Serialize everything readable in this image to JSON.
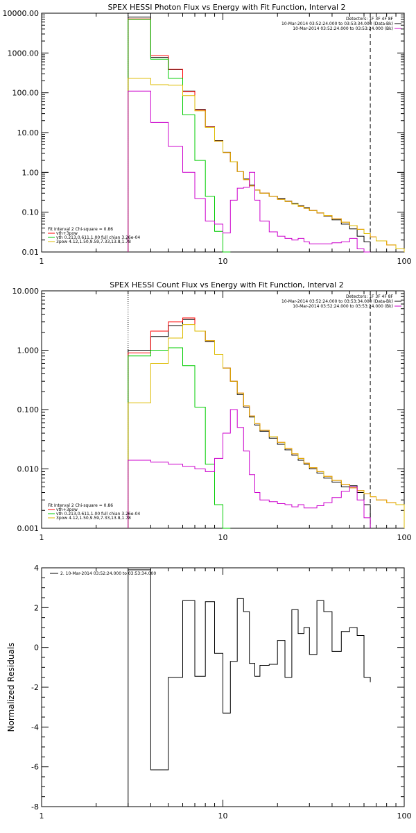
{
  "chart_data": [
    {
      "type": "line",
      "title": "SPEX HESSI Photon Flux vs Energy with Fit Function, Interval 2",
      "xlabel": "",
      "ylabel": "",
      "xscale": "log",
      "yscale": "log",
      "xlim": [
        1,
        100
      ],
      "ylim": [
        0.01,
        10000
      ],
      "xticks": [
        {
          "v": 1,
          "label": "1"
        },
        {
          "v": 10,
          "label": "10"
        },
        {
          "v": 100,
          "label": "100"
        }
      ],
      "yticks": [
        {
          "v": 10000,
          "label": "10000.00"
        },
        {
          "v": 1000,
          "label": "1000.00"
        },
        {
          "v": 100,
          "label": "100.00"
        },
        {
          "v": 10,
          "label": "10.00"
        },
        {
          "v": 1,
          "label": "1.00"
        },
        {
          "v": 0.1,
          "label": "0.10"
        },
        {
          "v": 0.01,
          "label": "0.01"
        }
      ],
      "vlines": [
        {
          "x": 3,
          "style": "dotted"
        },
        {
          "x": 65,
          "style": "dashed"
        }
      ],
      "legend_top": [
        "Detectors: 1F 3F 4F 8F",
        "10-Mar-2014 03:52:24.000 to 03:53:34.000 (Data-Bk)",
        "10-Mar-2014 03:52:24.000 to 03:53:24.000 (Bk)"
      ],
      "legend_top_colors": [
        "",
        "#000000",
        "#cc00cc"
      ],
      "legend_bottom": [
        "Fit Interval 2   Chi-square = 0.86",
        "vth+3pow",
        "vth 0.213,0.611,1.00  full chian 3.26e-04",
        "3pow 4.12,1.50,9.59,7.33,13.8,1.78"
      ],
      "legend_bottom_colors": [
        "",
        "#ff0000",
        "#00cc00",
        "#ddbb00"
      ],
      "edges": [
        3,
        4,
        5,
        6,
        7,
        8,
        9,
        10,
        11,
        12,
        13,
        14,
        15,
        16,
        18,
        20,
        22,
        24,
        26,
        28,
        30,
        33,
        36,
        40,
        45,
        50,
        55,
        60,
        65,
        70,
        80,
        90,
        100
      ],
      "series": [
        {
          "name": "",
          "color": "#000000",
          "values": [
            8000,
            780,
            380,
            110,
            38,
            14,
            6.3,
            3.2,
            1.85,
            1.05,
            0.68,
            0.48,
            0.36,
            0.3,
            0.25,
            0.22,
            0.19,
            0.165,
            0.145,
            0.13,
            0.11,
            0.096,
            0.08,
            0.064,
            0.05,
            0.038,
            0.025,
            0.018,
            null,
            null,
            null,
            null
          ]
        },
        {
          "name": "",
          "color": "#ff0000",
          "values": [
            7200,
            860,
            390,
            108,
            37,
            13.8,
            6.1,
            3.15,
            1.85,
            1.05,
            0.66,
            0.46,
            0.36,
            0.3,
            0.25,
            0.21,
            0.185,
            0.16,
            0.14,
            0.125,
            0.11,
            0.096,
            0.082,
            0.068,
            0.056,
            0.046,
            0.037,
            0.029,
            0.024,
            0.019,
            0.015,
            0.012
          ]
        },
        {
          "name": "",
          "color": "#00cc00",
          "values": [
            7000,
            700,
            230,
            28,
            2.0,
            0.25,
            0.033,
            0.01,
            null,
            null,
            null,
            null,
            null,
            null,
            null,
            null,
            null,
            null,
            null,
            null,
            null,
            null,
            null,
            null,
            null,
            null,
            null,
            null,
            null,
            null,
            null,
            null
          ]
        },
        {
          "name": "",
          "color": "#ddbb00",
          "values": [
            230,
            160,
            155,
            85,
            35,
            13.5,
            6.1,
            3.15,
            1.85,
            1.05,
            0.66,
            0.46,
            0.36,
            0.3,
            0.25,
            0.21,
            0.185,
            0.16,
            0.14,
            0.125,
            0.11,
            0.096,
            0.082,
            0.068,
            0.056,
            0.046,
            0.037,
            0.029,
            0.024,
            0.019,
            0.015,
            0.012
          ]
        },
        {
          "name": "",
          "color": "#cc00cc",
          "values": [
            110,
            18,
            4.5,
            1.0,
            0.22,
            0.06,
            0.05,
            0.03,
            0.2,
            0.4,
            0.42,
            1.0,
            0.2,
            0.06,
            0.032,
            0.025,
            0.022,
            0.02,
            0.022,
            0.018,
            0.016,
            0.016,
            0.016,
            0.017,
            0.018,
            0.022,
            0.012,
            0.01,
            null,
            null,
            null,
            null
          ]
        }
      ]
    },
    {
      "type": "line",
      "title": "SPEX HESSI Count Flux vs Energy with Fit Function, Interval 2",
      "xlabel": "",
      "ylabel": "",
      "xscale": "log",
      "yscale": "log",
      "xlim": [
        1,
        100
      ],
      "ylim": [
        0.001,
        10
      ],
      "xticks": [
        {
          "v": 1,
          "label": "1"
        },
        {
          "v": 10,
          "label": "10"
        },
        {
          "v": 100,
          "label": "100"
        }
      ],
      "yticks": [
        {
          "v": 10,
          "label": "10.000"
        },
        {
          "v": 1,
          "label": "1.000"
        },
        {
          "v": 0.1,
          "label": "0.100"
        },
        {
          "v": 0.01,
          "label": "0.010"
        },
        {
          "v": 0.001,
          "label": "0.001"
        }
      ],
      "vlines": [
        {
          "x": 3,
          "style": "dotted"
        },
        {
          "x": 65,
          "style": "dashed"
        }
      ],
      "legend_top": [
        "Detectors: 1F 3F 4F 8F",
        "10-Mar-2014 03:52:24.000 to 03:53:34.000 (Data-Bk)",
        "10-Mar-2014 03:52:24.000 to 03:53:24.000 (Bk)"
      ],
      "legend_top_colors": [
        "",
        "#000000",
        "#cc00cc"
      ],
      "legend_bottom": [
        "Fit Interval 2   Chi-square = 0.86",
        "vth+3pow",
        "vth 0.213,0.611,1.00  full chian 3.26e-04",
        "3pow 4.12,1.50,9.59,7.33,13.8,1.78"
      ],
      "legend_bottom_colors": [
        "",
        "#ff0000",
        "#00cc00",
        "#ddbb00"
      ],
      "edges": [
        3,
        4,
        5,
        6,
        7,
        8,
        9,
        10,
        11,
        12,
        13,
        14,
        15,
        16,
        18,
        20,
        22,
        24,
        26,
        28,
        30,
        33,
        36,
        40,
        45,
        50,
        55,
        60,
        65,
        70,
        80,
        90,
        100
      ],
      "series": [
        {
          "name": "",
          "color": "#000000",
          "values": [
            1.0,
            1.7,
            2.6,
            3.3,
            2.1,
            1.4,
            0.85,
            0.5,
            0.3,
            0.18,
            0.11,
            0.075,
            0.055,
            0.043,
            0.033,
            0.026,
            0.021,
            0.017,
            0.014,
            0.012,
            0.01,
            0.0085,
            0.007,
            0.006,
            0.005,
            0.0052,
            0.004,
            0.0025,
            null,
            null,
            null,
            null
          ]
        },
        {
          "name": "",
          "color": "#ff0000",
          "values": [
            0.9,
            2.1,
            3.0,
            3.5,
            2.1,
            1.45,
            0.85,
            0.5,
            0.3,
            0.19,
            0.115,
            0.078,
            0.058,
            0.045,
            0.035,
            0.028,
            0.022,
            0.018,
            0.015,
            0.0125,
            0.0105,
            0.009,
            0.0075,
            0.0064,
            0.0055,
            0.0048,
            0.0043,
            0.0038,
            0.0034,
            0.003,
            0.0027,
            0.0025
          ]
        },
        {
          "name": "",
          "color": "#00cc00",
          "values": [
            0.8,
            1.0,
            1.1,
            0.55,
            0.11,
            0.012,
            0.0025,
            0.0008,
            null,
            null,
            null,
            null,
            null,
            null,
            null,
            null,
            null,
            null,
            null,
            null,
            null,
            null,
            null,
            null,
            null,
            null,
            null,
            null,
            null,
            null,
            null,
            null
          ]
        },
        {
          "name": "",
          "color": "#ddbb00",
          "values": [
            0.13,
            0.6,
            1.6,
            2.7,
            2.1,
            1.45,
            0.85,
            0.5,
            0.3,
            0.19,
            0.115,
            0.078,
            0.058,
            0.045,
            0.035,
            0.028,
            0.022,
            0.018,
            0.015,
            0.0125,
            0.0105,
            0.009,
            0.0075,
            0.0064,
            0.0055,
            0.0048,
            0.0043,
            0.0038,
            0.0034,
            0.003,
            0.0027,
            0.0025
          ]
        },
        {
          "name": "",
          "color": "#cc00cc",
          "values": [
            0.014,
            0.013,
            0.012,
            0.011,
            0.01,
            0.009,
            0.015,
            0.04,
            0.1,
            0.05,
            0.02,
            0.008,
            0.004,
            0.003,
            0.0028,
            0.0026,
            0.0025,
            0.0023,
            0.0025,
            0.0022,
            0.0022,
            0.0024,
            0.0027,
            0.0033,
            0.0042,
            0.005,
            0.003,
            0.0015,
            null,
            null,
            null,
            null
          ]
        }
      ]
    },
    {
      "type": "line",
      "title": "",
      "xlabel": "",
      "ylabel": "Normalized Residuals",
      "xscale": "log",
      "yscale": "linear",
      "xlim": [
        1,
        100
      ],
      "ylim": [
        -8,
        4
      ],
      "xticks": [
        {
          "v": 1,
          "label": "1"
        },
        {
          "v": 10,
          "label": "10"
        },
        {
          "v": 100,
          "label": "100"
        }
      ],
      "yticks": [
        {
          "v": 4,
          "label": "4"
        },
        {
          "v": 2,
          "label": "2"
        },
        {
          "v": 0,
          "label": "0"
        },
        {
          "v": -2,
          "label": "-2"
        },
        {
          "v": -4,
          "label": "-4"
        },
        {
          "v": -6,
          "label": "-6"
        },
        {
          "v": -8,
          "label": "-8"
        }
      ],
      "vlines": [],
      "legend_top": [
        "2. 10-Mar-2014 03:52:24.000 to 03:53:34.000"
      ],
      "legend_top_colors": [
        "#000000"
      ],
      "legend_bottom": [],
      "legend_bottom_colors": [],
      "edges": [
        3,
        4,
        5,
        6,
        7,
        8,
        9,
        10,
        11,
        12,
        13,
        14,
        15,
        16,
        18,
        20,
        22,
        24,
        26,
        28,
        30,
        33,
        36,
        40,
        45,
        50,
        55,
        60,
        65
      ],
      "series": [
        {
          "name": "",
          "color": "#000000",
          "values": [
            3.9,
            -6.15,
            -1.5,
            2.35,
            -1.45,
            2.3,
            -0.3,
            -3.3,
            -0.7,
            2.45,
            1.8,
            -0.8,
            -1.45,
            -0.9,
            -0.85,
            0.35,
            -1.5,
            1.9,
            0.7,
            1.0,
            -0.35,
            2.35,
            1.8,
            -0.2,
            0.8,
            1.0,
            0.6,
            -1.5,
            -1.75
          ]
        }
      ]
    }
  ]
}
